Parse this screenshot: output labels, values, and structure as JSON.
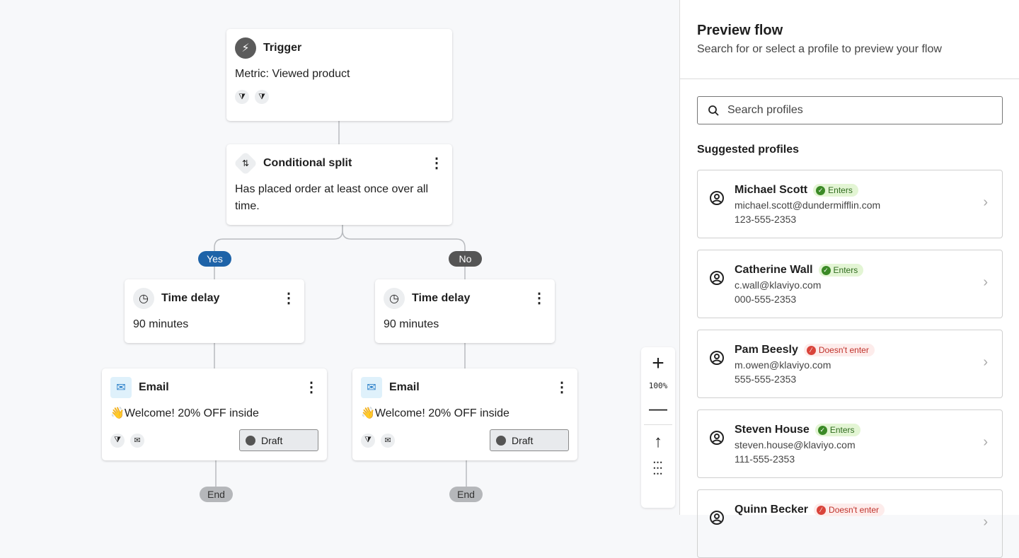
{
  "flow": {
    "trigger": {
      "title": "Trigger",
      "body": "Metric: Viewed product",
      "icons": [
        "trigger-filter-icon",
        "profile-filter-icon"
      ]
    },
    "split": {
      "title": "Conditional split",
      "body": "Has placed order at least once over all time."
    },
    "yes_label": "Yes",
    "no_label": "No",
    "branches": [
      {
        "delay": {
          "title": "Time delay",
          "body": "90 minutes"
        },
        "email": {
          "title": "Email",
          "emoji": "👋",
          "subject": "Welcome! 20% OFF inside",
          "status": "Draft"
        },
        "end": "End"
      },
      {
        "delay": {
          "title": "Time delay",
          "body": "90 minutes"
        },
        "email": {
          "title": "Email",
          "emoji": "👋",
          "subject": "Welcome! 20% OFF inside",
          "status": "Draft"
        },
        "end": "End"
      }
    ],
    "colors": {
      "yes": "#1e63a8",
      "no": "#555555",
      "end": "#b5b7ba"
    }
  },
  "zoom": {
    "level": "100%"
  },
  "panel": {
    "title": "Preview flow",
    "subtitle": "Search for or select a profile to preview your flow",
    "search_placeholder": "Search profiles",
    "suggested_label": "Suggested profiles",
    "profiles": [
      {
        "name": "Michael Scott",
        "status": "Enters",
        "email": "michael.scott@dundermifflin.com",
        "phone": "123-555-2353"
      },
      {
        "name": "Catherine Wall",
        "status": "Enters",
        "email": "c.wall@klaviyo.com",
        "phone": "000-555-2353"
      },
      {
        "name": "Pam Beesly",
        "status": "Doesn't enter",
        "email": "m.owen@klaviyo.com",
        "phone": "555-555-2353"
      },
      {
        "name": "Steven House",
        "status": "Enters",
        "email": "steven.house@klaviyo.com",
        "phone": "111-555-2353"
      },
      {
        "name": "Quinn Becker",
        "status": "Doesn't enter",
        "email": "",
        "phone": ""
      }
    ],
    "colors": {
      "enters_bg": "#e3f5d4",
      "enters_fg": "#2f6b1e",
      "enters_icon": "#3b8a26",
      "noenter_bg": "#fdeceb",
      "noenter_fg": "#c0322b"
    }
  }
}
